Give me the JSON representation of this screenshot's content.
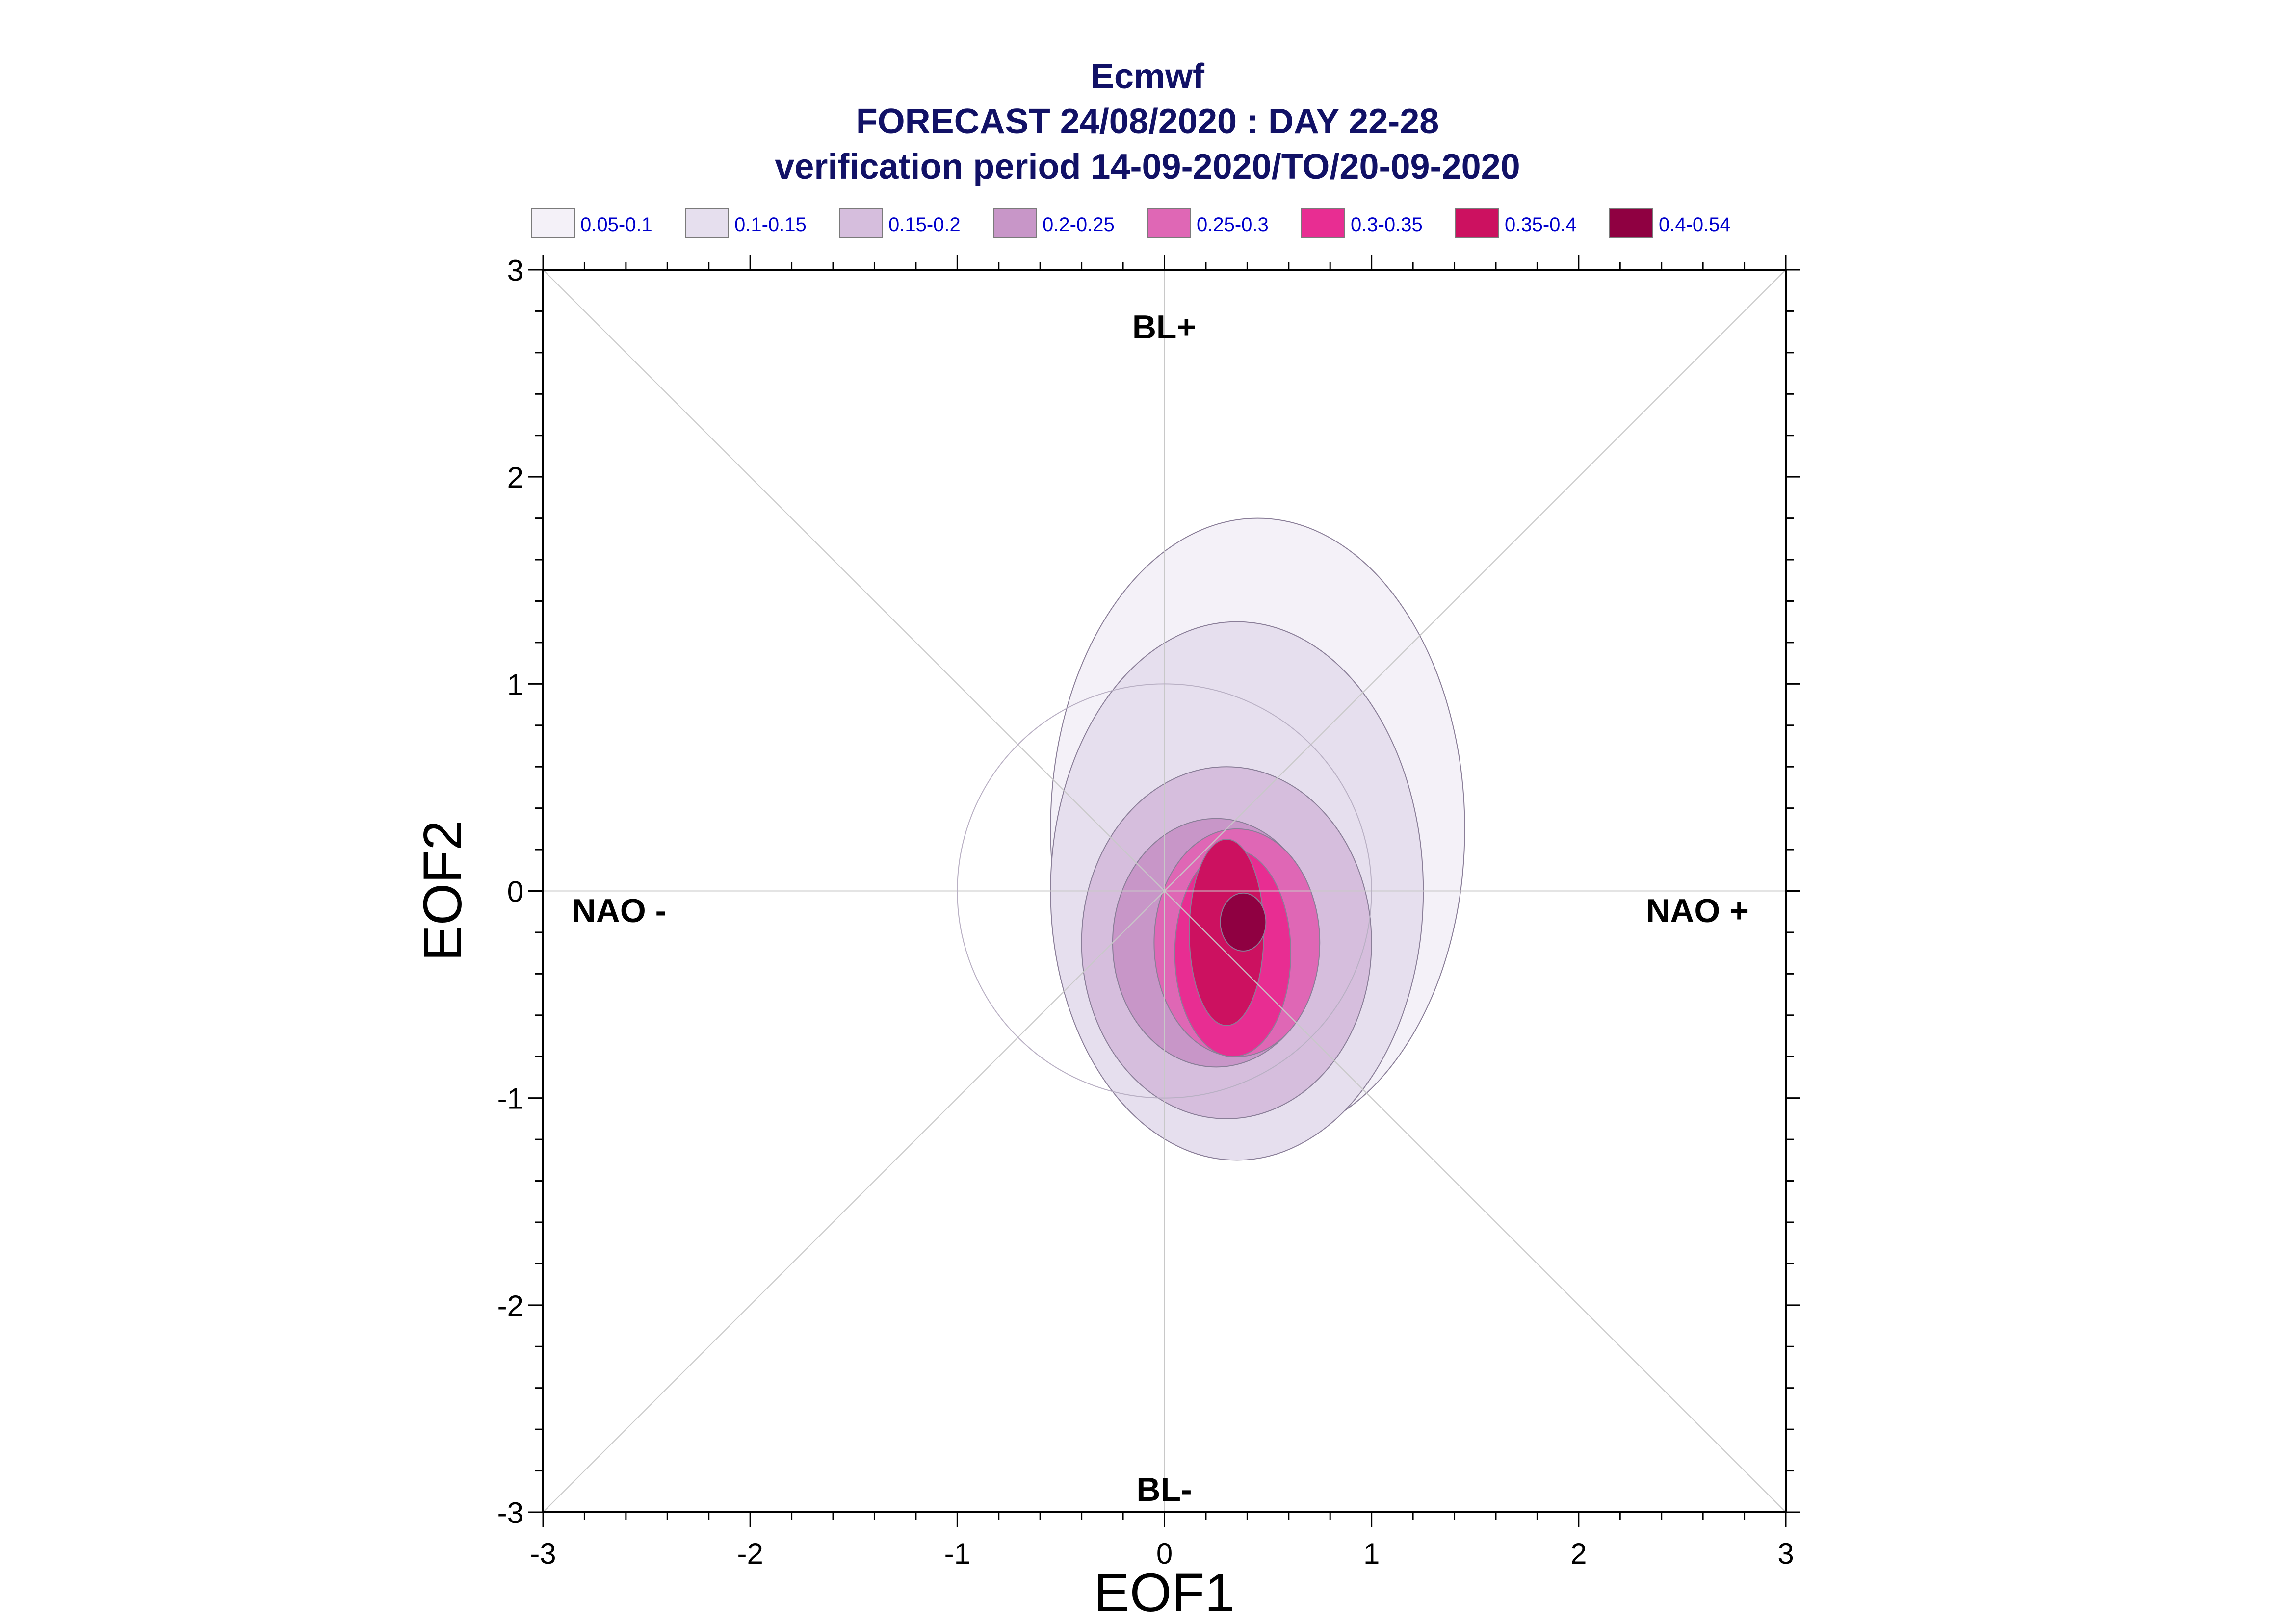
{
  "chart_data": {
    "type": "contour",
    "title_lines": [
      "Ecmwf",
      "FORECAST 24/08/2020 : DAY 22-28",
      "verification period 14-09-2020/TO/20-09-2020"
    ],
    "xlabel": "EOF1",
    "ylabel": "EOF2",
    "xlim": [
      -3,
      3
    ],
    "ylim": [
      -3,
      3
    ],
    "x_ticks": [
      "-3",
      "-2",
      "-1",
      "0",
      "1",
      "2",
      "3"
    ],
    "y_ticks": [
      "3",
      "2",
      "1",
      "0",
      "-1",
      "-2",
      "-3"
    ],
    "regime_labels": {
      "top": "BL+",
      "bottom": "BL-",
      "left": "NAO -",
      "right": "NAO +"
    },
    "reference_circle_radius": 1,
    "legend": [
      {
        "label": "0.05-0.1",
        "color": "#f4f1f8"
      },
      {
        "label": "0.1-0.15",
        "color": "#e6dfee"
      },
      {
        "label": "0.15-0.2",
        "color": "#d6bedd"
      },
      {
        "label": "0.2-0.25",
        "color": "#c896c8"
      },
      {
        "label": "0.25-0.3",
        "color": "#df67b5"
      },
      {
        "label": "0.3-0.35",
        "color": "#e82d92"
      },
      {
        "label": "0.35-0.4",
        "color": "#cc1160"
      },
      {
        "label": "0.4-0.54",
        "color": "#8f0041"
      }
    ],
    "density_levels": [
      {
        "level": "0.05-0.1",
        "center": [
          0.45,
          0.3
        ],
        "rx": 1.0,
        "ry": 1.5
      },
      {
        "level": "0.1-0.15",
        "center": [
          0.35,
          0.0
        ],
        "rx": 0.9,
        "ry": 1.3
      },
      {
        "level": "0.15-0.2",
        "center": [
          0.3,
          -0.25
        ],
        "rx": 0.7,
        "ry": 0.85
      },
      {
        "level": "0.2-0.25",
        "center": [
          0.25,
          -0.25
        ],
        "rx": 0.5,
        "ry": 0.6
      },
      {
        "level": "0.25-0.3",
        "center": [
          0.35,
          -0.25
        ],
        "rx": 0.4,
        "ry": 0.55
      },
      {
        "level": "0.3-0.35",
        "center": [
          0.33,
          -0.3
        ],
        "rx": 0.28,
        "ry": 0.5
      },
      {
        "level": "0.35-0.4",
        "center": [
          0.3,
          -0.2
        ],
        "rx": 0.18,
        "ry": 0.45
      },
      {
        "level": "0.4-0.54",
        "center": [
          0.38,
          -0.15
        ],
        "rx": 0.11,
        "ry": 0.14
      }
    ]
  }
}
